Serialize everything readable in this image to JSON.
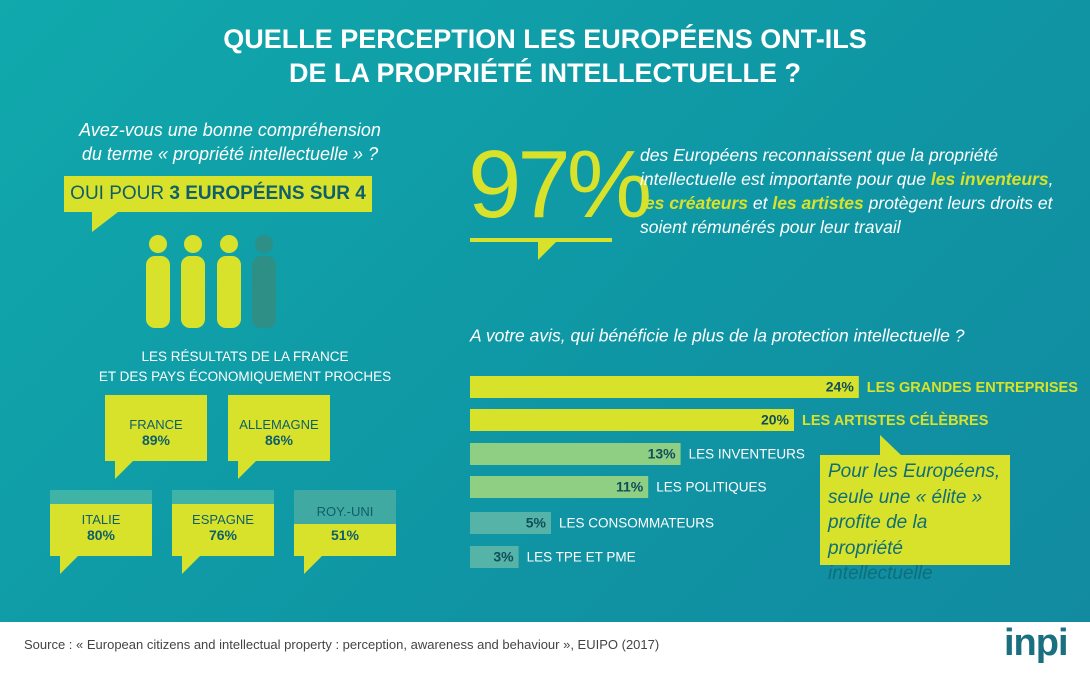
{
  "header": {
    "title_lines": [
      "QUELLE PERCEPTION LES EUROPÉENS ONT-ILS",
      "DE LA PROPRIÉTÉ INTELLECTUELLE ?"
    ]
  },
  "left": {
    "question_lines": [
      "Avez-vous une bonne compréhension",
      "du terme « propriété intellectuelle » ?"
    ],
    "badge": {
      "prefix": "OUI POUR ",
      "emphasis": "3 EUROPÉENS SUR 4"
    },
    "results_lines": [
      "LES RÉSULTATS DE LA FRANCE",
      "ET DES PAYS ÉCONOMIQUEMENT PROCHES"
    ],
    "countries": [
      {
        "name": "FRANCE",
        "value": "89%"
      },
      {
        "name": "ALLEMAGNE",
        "value": "86%"
      },
      {
        "name": "ITALIE",
        "value": "80%"
      },
      {
        "name": "ESPAGNE",
        "value": "76%"
      },
      {
        "name": "ROY.-UNI",
        "value": "51%"
      }
    ]
  },
  "highlight": {
    "big_number": "97%",
    "text_parts": [
      "des Européens reconnaissent que la propriété intellectuelle est importante pour que ",
      "les inventeurs",
      ", ",
      "les créateurs",
      " et ",
      "les artistes",
      " protègent leurs droits et soient rémunérés pour leur travail"
    ]
  },
  "chart_data": {
    "type": "bar",
    "title": "A votre avis, qui bénéficie le plus de la protection intellectuelle ?",
    "categories": [
      "LES GRANDES ENTREPRISES",
      "LES ARTISTES CÉLÈBRES",
      "LES INVENTEURS",
      "LES POLITIQUES",
      "LES CONSOMMATEURS",
      "LES TPE ET PME"
    ],
    "values": [
      24,
      20,
      13,
      11,
      5,
      3
    ],
    "value_labels": [
      "24%",
      "20%",
      "13%",
      "11%",
      "5%",
      "3%"
    ],
    "colors": [
      "#d8e22a",
      "#d8e22a",
      "#8fcf84",
      "#8fcf84",
      "#56b3a7",
      "#56b3a7"
    ]
  },
  "callout": {
    "lines": [
      "Pour les Européens,",
      "seule une « élite »",
      "profite de la propriété",
      "intellectuelle"
    ]
  },
  "footer": {
    "source": "Source : « European citizens and intellectual property : perception, awareness and behaviour », EUIPO (2017)",
    "logo": "inpi"
  }
}
